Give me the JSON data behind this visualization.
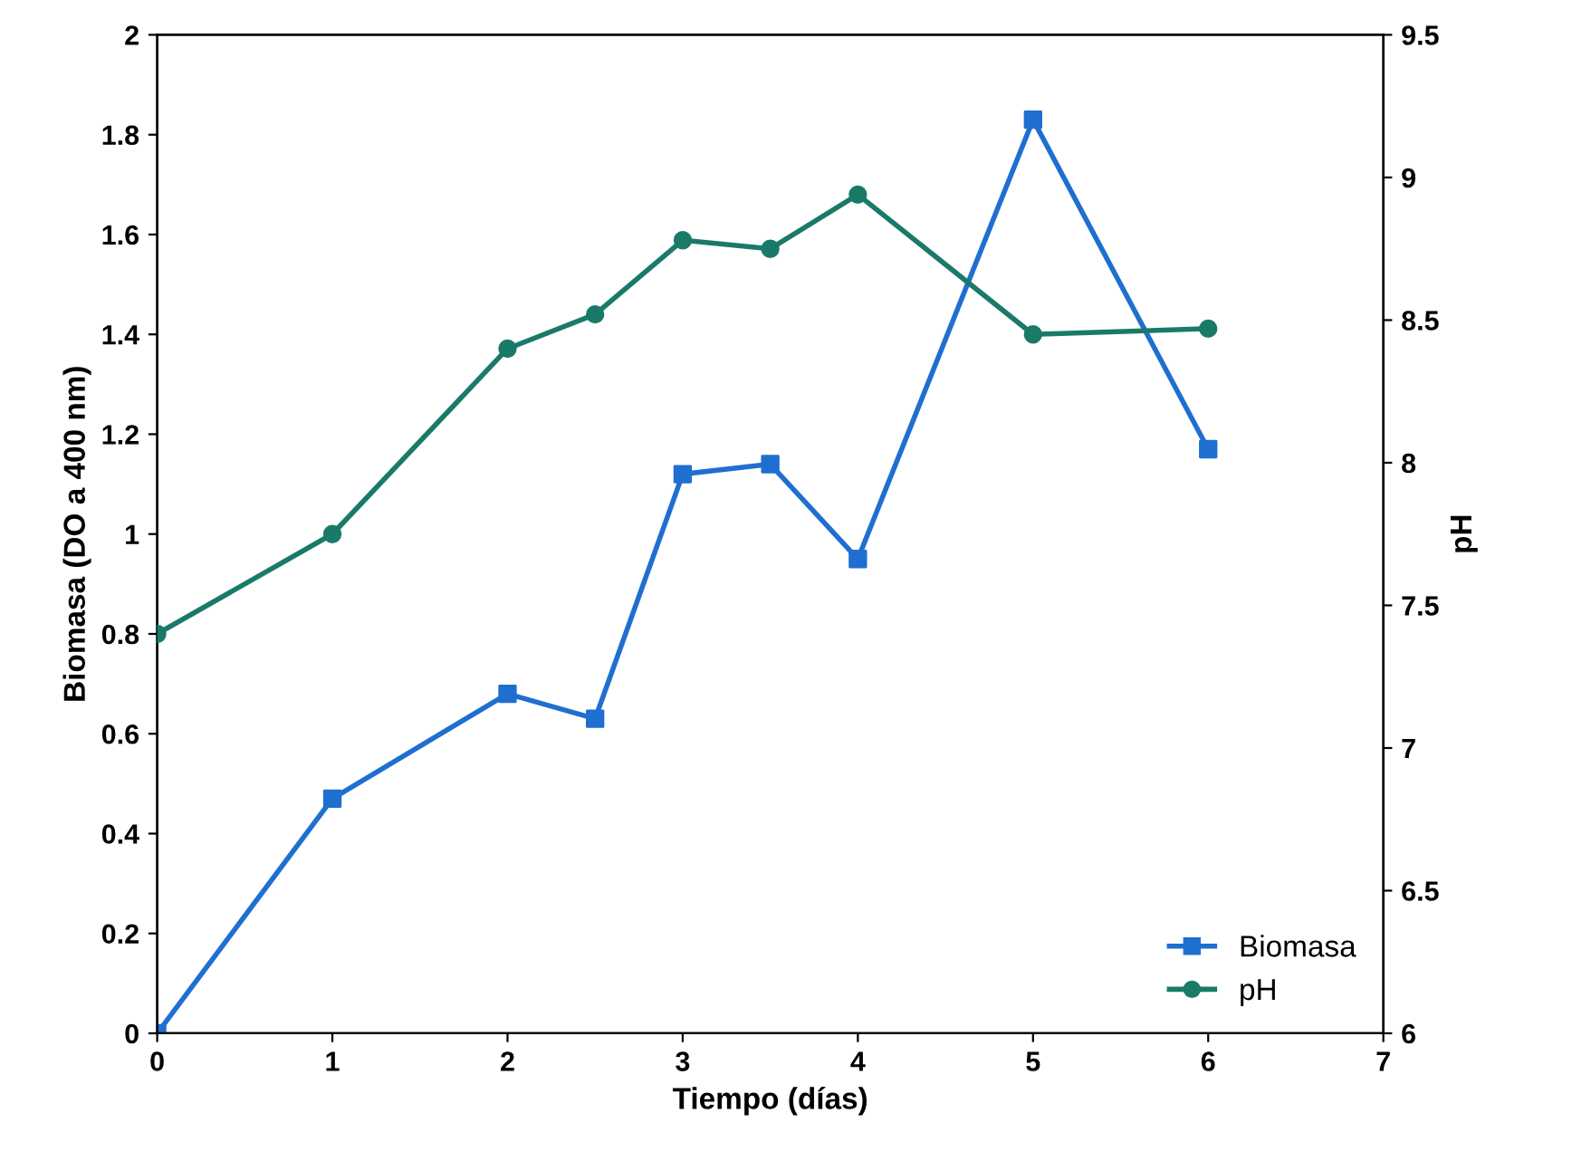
{
  "chart_data": {
    "type": "line",
    "xlabel": "Tiempo (días)",
    "ylabel": "Biomasa (DO a 400 nm)",
    "y2label": "pH",
    "x": [
      0,
      1,
      2,
      2.5,
      3,
      3.5,
      4,
      5,
      6
    ],
    "xlim": [
      0,
      7
    ],
    "xticks": [
      0,
      1,
      2,
      3,
      4,
      5,
      6,
      7
    ],
    "ylim": [
      0,
      2
    ],
    "yticks": [
      0,
      0.2,
      0.4,
      0.6,
      0.8,
      1,
      1.2,
      1.4,
      1.6,
      1.8,
      2
    ],
    "y2lim": [
      6,
      9.5
    ],
    "y2ticks": [
      6,
      6.5,
      7,
      7.5,
      8,
      8.5,
      9,
      9.5
    ],
    "series": [
      {
        "name": "Biomasa",
        "color": "#1f6fd0",
        "marker": "square",
        "values": [
          0,
          0.47,
          0.68,
          0.63,
          1.12,
          1.14,
          0.95,
          1.83,
          1.17
        ]
      },
      {
        "name": "pH",
        "color": "#1a7a6a",
        "marker": "circle",
        "axis": "y2",
        "values": [
          7.4,
          7.75,
          8.4,
          8.52,
          8.78,
          8.75,
          8.94,
          8.45,
          8.47
        ]
      }
    ],
    "legend": "bottom right",
    "grid": false,
    "line_style": "solid"
  }
}
